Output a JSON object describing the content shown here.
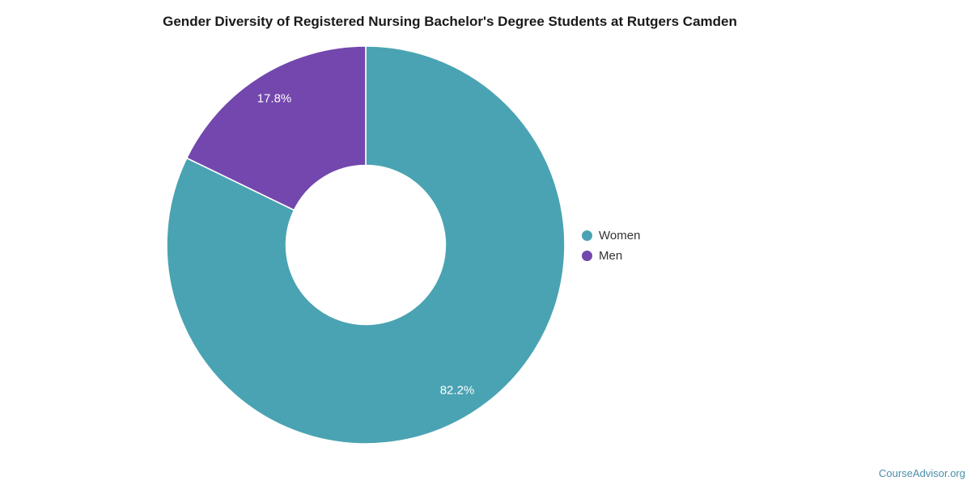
{
  "title": "Gender Diversity of Registered Nursing Bachelor's Degree Students at Rutgers Camden",
  "footer": {
    "brand": "CourseAdvisor.org",
    "color": "#4A8FA9"
  },
  "chart_data": {
    "type": "pie",
    "title": "Gender Diversity of Registered Nursing Bachelor's Degree Students at Rutgers Camden",
    "hole": 0.4,
    "start_angle_deg": 0,
    "direction": "clockwise",
    "legend_position": "right",
    "slice_label_color": "#ffffff",
    "slice_border_color": "#ffffff",
    "series": [
      {
        "name": "Women",
        "value": 82.2,
        "label": "82.2%",
        "color": "#4AA3B2"
      },
      {
        "name": "Men",
        "value": 17.8,
        "label": "17.8%",
        "color": "#7347AD"
      }
    ]
  }
}
